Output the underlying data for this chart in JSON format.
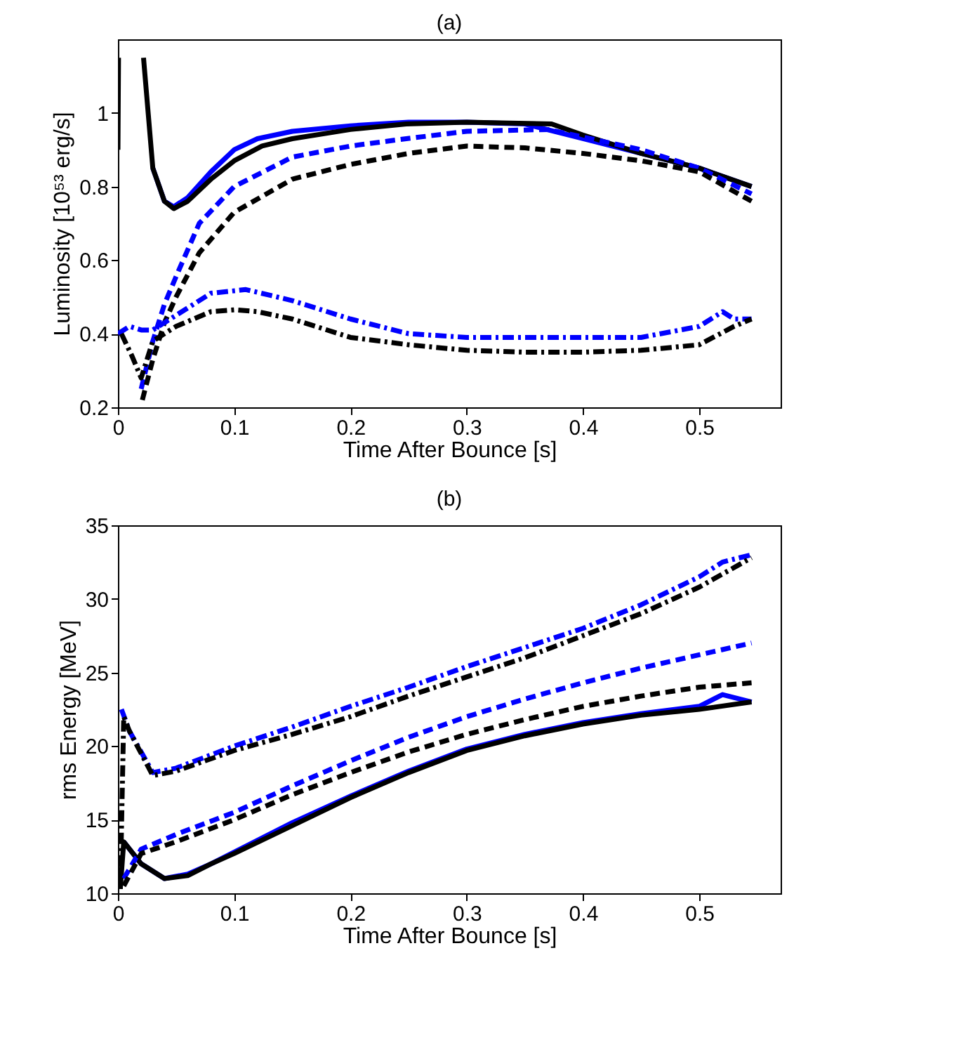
{
  "chart_data": [
    {
      "type": "line",
      "title": "(a)",
      "xlabel": "Time After Bounce [s]",
      "ylabel": "Luminosity [10⁵³ erg/s]",
      "xlim": [
        0,
        0.57
      ],
      "ylim": [
        0.2,
        1.2
      ],
      "xticks": [
        0,
        0.1,
        0.2,
        0.3,
        0.4,
        0.5
      ],
      "yticks": [
        0.2,
        0.4,
        0.6,
        0.8,
        1
      ],
      "grid": false,
      "series": [
        {
          "color": "#0000ff",
          "line_style": "solid",
          "x": [
            0.03,
            0.04,
            0.048,
            0.06,
            0.08,
            0.1,
            0.12,
            0.15,
            0.2,
            0.25,
            0.3,
            0.35,
            0.4,
            0.45,
            0.5,
            0.545
          ],
          "values": [
            0.85,
            0.76,
            0.745,
            0.77,
            0.84,
            0.9,
            0.93,
            0.95,
            0.965,
            0.975,
            0.975,
            0.97,
            0.93,
            0.89,
            0.85,
            0.8
          ]
        },
        {
          "color": "#000000",
          "line_style": "solid",
          "x": [
            0,
            0.0005,
            0.01,
            0.022,
            0.03,
            0.04,
            0.048,
            0.06,
            0.08,
            0.1,
            0.124,
            0.15,
            0.2,
            0.248,
            0.3,
            0.373,
            0.4,
            0.45,
            0.5,
            0.545
          ],
          "values": [
            0.9,
            1.15,
            null,
            1.15,
            0.85,
            0.76,
            0.74,
            0.76,
            0.82,
            0.87,
            0.91,
            0.93,
            0.955,
            0.97,
            0.975,
            0.97,
            0.94,
            0.89,
            0.85,
            0.8
          ]
        },
        {
          "color": "#0000ff",
          "line_style": "dashed",
          "x": [
            0.02,
            0.03,
            0.04,
            0.052,
            0.07,
            0.1,
            0.15,
            0.2,
            0.248,
            0.3,
            0.37,
            0.45,
            0.5,
            0.545
          ],
          "values": [
            0.25,
            0.38,
            0.48,
            0.57,
            0.7,
            0.8,
            0.88,
            0.91,
            0.93,
            0.95,
            0.955,
            0.9,
            0.85,
            0.78
          ]
        },
        {
          "color": "#000000",
          "line_style": "dashed",
          "x": [
            0.021,
            0.03,
            0.04,
            0.05,
            0.07,
            0.1,
            0.15,
            0.2,
            0.25,
            0.3,
            0.35,
            0.4,
            0.45,
            0.5,
            0.545
          ],
          "values": [
            0.22,
            0.33,
            0.43,
            0.5,
            0.62,
            0.73,
            0.82,
            0.86,
            0.89,
            0.91,
            0.905,
            0.89,
            0.87,
            0.84,
            0.76
          ]
        },
        {
          "color": "#0000ff",
          "line_style": "dashdot",
          "x": [
            0,
            0.01,
            0.02,
            0.03,
            0.05,
            0.08,
            0.11,
            0.15,
            0.2,
            0.25,
            0.3,
            0.35,
            0.4,
            0.45,
            0.5,
            0.52,
            0.53,
            0.545
          ],
          "values": [
            0.4,
            0.42,
            0.41,
            0.41,
            0.45,
            0.51,
            0.52,
            0.49,
            0.44,
            0.4,
            0.39,
            0.39,
            0.39,
            0.39,
            0.42,
            0.46,
            0.44,
            0.44
          ]
        },
        {
          "color": "#000000",
          "line_style": "dashdot",
          "x": [
            0.003,
            0.012,
            0.02,
            0.03,
            0.05,
            0.08,
            0.1,
            0.12,
            0.15,
            0.2,
            0.25,
            0.3,
            0.35,
            0.4,
            0.45,
            0.5,
            0.53,
            0.545
          ],
          "values": [
            0.4,
            0.34,
            0.28,
            0.38,
            0.42,
            0.46,
            0.465,
            0.46,
            0.44,
            0.39,
            0.37,
            0.355,
            0.35,
            0.35,
            0.355,
            0.37,
            0.42,
            0.44
          ]
        }
      ]
    },
    {
      "type": "line",
      "title": "(b)",
      "xlabel": "Time After Bounce [s]",
      "ylabel": "rms Energy [MeV]",
      "xlim": [
        0,
        0.57
      ],
      "ylim": [
        10,
        35
      ],
      "xticks": [
        0,
        0.1,
        0.2,
        0.3,
        0.4,
        0.5
      ],
      "yticks": [
        10,
        15,
        20,
        25,
        30,
        35
      ],
      "grid": false,
      "series": [
        {
          "color": "#0000ff",
          "line_style": "solid",
          "x": [
            0.005,
            0.01,
            0.02,
            0.04,
            0.06,
            0.08,
            0.1,
            0.15,
            0.2,
            0.25,
            0.3,
            0.35,
            0.4,
            0.45,
            0.5,
            0.52,
            0.545
          ],
          "values": [
            13.5,
            13,
            12,
            11,
            11.3,
            12,
            12.8,
            14.8,
            16.6,
            18.3,
            19.8,
            20.8,
            21.6,
            22.2,
            22.7,
            23.5,
            23
          ]
        },
        {
          "color": "#000000",
          "line_style": "solid",
          "x": [
            0.002,
            0.005,
            0.01,
            0.02,
            0.04,
            0.06,
            0.08,
            0.1,
            0.15,
            0.2,
            0.25,
            0.3,
            0.35,
            0.4,
            0.45,
            0.5,
            0.545
          ],
          "values": [
            10.3,
            13.5,
            13,
            12,
            11,
            11.2,
            12,
            12.7,
            14.6,
            16.5,
            18.2,
            19.7,
            20.7,
            21.5,
            22.1,
            22.5,
            23
          ]
        },
        {
          "color": "#0000ff",
          "line_style": "dashed",
          "x": [
            0.005,
            0.02,
            0.05,
            0.1,
            0.15,
            0.2,
            0.25,
            0.3,
            0.35,
            0.4,
            0.45,
            0.5,
            0.545
          ],
          "values": [
            11,
            13,
            14,
            15.5,
            17.3,
            19,
            20.6,
            22,
            23.2,
            24.3,
            25.3,
            26.2,
            27
          ]
        },
        {
          "color": "#000000",
          "line_style": "dashed",
          "x": [
            0.005,
            0.02,
            0.05,
            0.1,
            0.15,
            0.2,
            0.25,
            0.3,
            0.35,
            0.4,
            0.45,
            0.5,
            0.545
          ],
          "values": [
            10.5,
            12.7,
            13.5,
            15,
            16.7,
            18.2,
            19.6,
            20.8,
            21.8,
            22.7,
            23.4,
            24,
            24.3
          ]
        },
        {
          "color": "#0000ff",
          "line_style": "dashdot",
          "x": [
            0.003,
            0.01,
            0.03,
            0.05,
            0.1,
            0.15,
            0.2,
            0.25,
            0.3,
            0.35,
            0.4,
            0.45,
            0.5,
            0.52,
            0.545
          ],
          "values": [
            22.5,
            21,
            18.2,
            18.5,
            20,
            21.3,
            22.7,
            24,
            25.4,
            26.7,
            28,
            29.6,
            31.5,
            32.5,
            33
          ]
        },
        {
          "color": "#000000",
          "line_style": "dashdot",
          "x": [
            0.002,
            0.005,
            0.01,
            0.03,
            0.05,
            0.1,
            0.15,
            0.2,
            0.25,
            0.3,
            0.35,
            0.4,
            0.45,
            0.5,
            0.545
          ],
          "values": [
            10.3,
            22,
            21,
            18,
            18.3,
            19.7,
            20.8,
            22,
            23.4,
            24.7,
            26,
            27.5,
            29,
            30.8,
            32.8
          ]
        }
      ]
    }
  ]
}
